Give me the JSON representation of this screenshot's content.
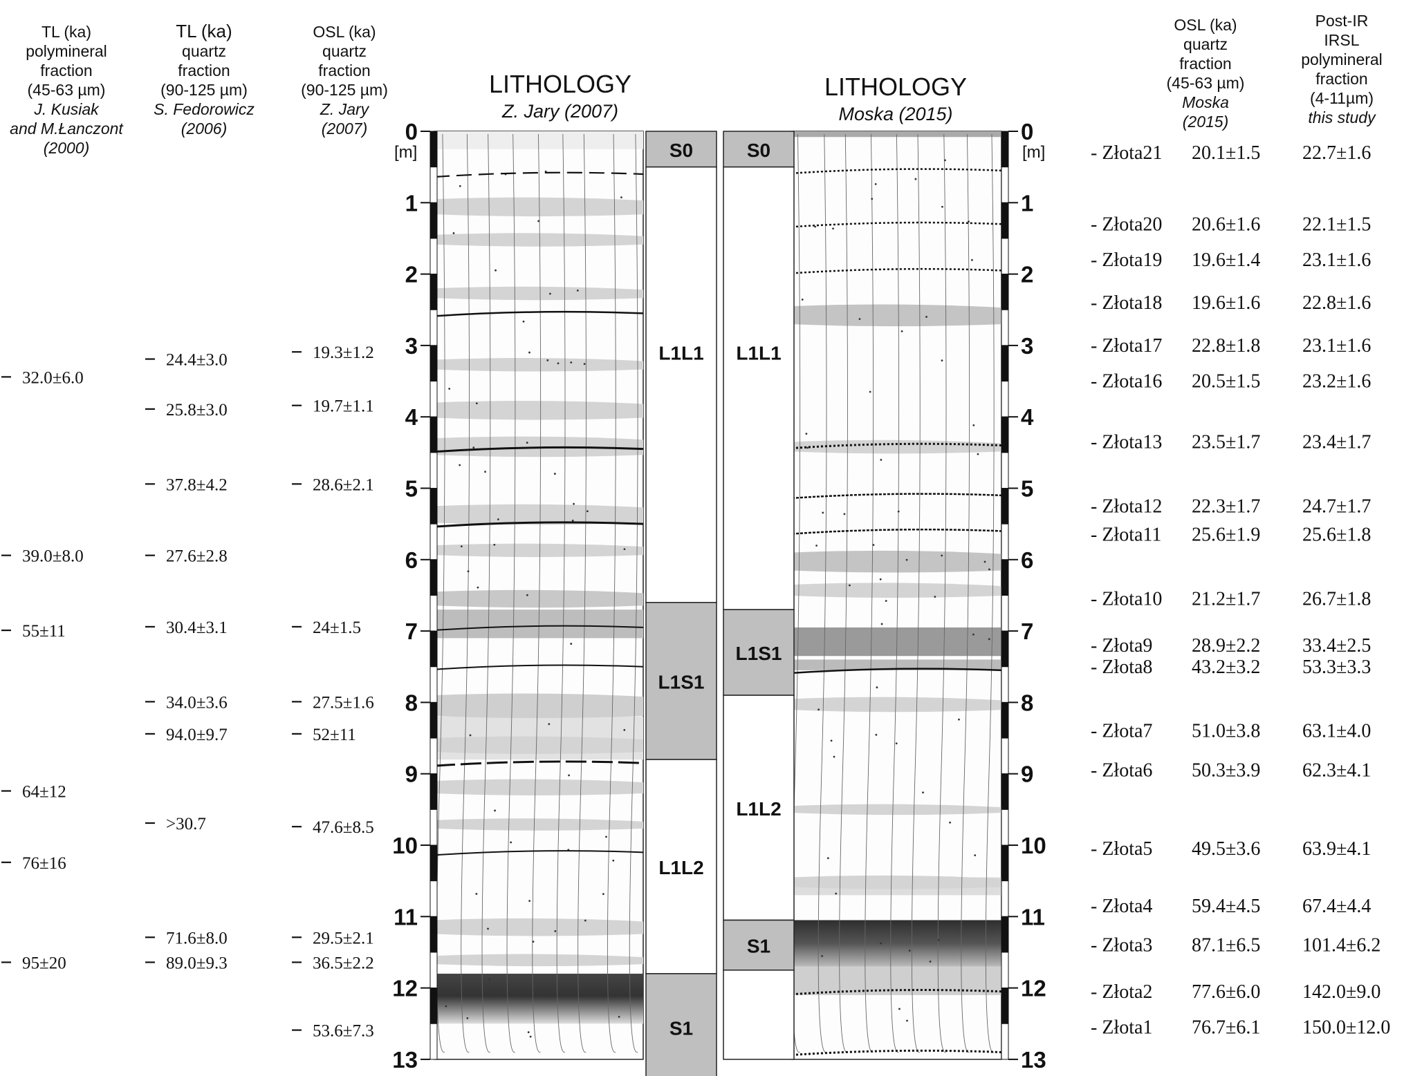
{
  "columns": {
    "tl_poly": {
      "header": [
        "TL (ka)",
        "polymineral",
        "fraction",
        "(45-63 µm)"
      ],
      "author": [
        "J. Kusiak",
        "and M.Łanczont",
        "(2000)"
      ],
      "values": [
        {
          "depth": 3.45,
          "label": "32.0±6.0"
        },
        {
          "depth": 5.95,
          "label": "39.0±8.0"
        },
        {
          "depth": 7.0,
          "label": "55±11"
        },
        {
          "depth": 9.25,
          "label": "64±12"
        },
        {
          "depth": 10.25,
          "label": "76±16"
        },
        {
          "depth": 11.65,
          "label": "95±20"
        }
      ]
    },
    "tl_quartz": {
      "header": [
        "TL (ka)",
        "quartz",
        "fraction",
        "(90-125 µm)"
      ],
      "author": [
        "S. Fedorowicz",
        "(2006)"
      ],
      "values": [
        {
          "depth": 3.2,
          "label": "24.4±3.0"
        },
        {
          "depth": 3.9,
          "label": "25.8±3.0"
        },
        {
          "depth": 4.95,
          "label": "37.8±4.2"
        },
        {
          "depth": 5.95,
          "label": "27.6±2.8"
        },
        {
          "depth": 6.95,
          "label": "30.4±3.1"
        },
        {
          "depth": 8.0,
          "label": "34.0±3.6"
        },
        {
          "depth": 8.45,
          "label": "94.0±9.7"
        },
        {
          "depth": 9.7,
          "label": ">30.7"
        },
        {
          "depth": 11.3,
          "label": "71.6±8.0"
        },
        {
          "depth": 11.65,
          "label": "89.0±9.3"
        }
      ]
    },
    "osl_jary": {
      "header": [
        "OSL (ka)",
        "quartz",
        "fraction",
        "(90-125 µm)"
      ],
      "author": [
        "Z. Jary",
        "(2007)"
      ],
      "values": [
        {
          "depth": 3.1,
          "label": "19.3±1.2"
        },
        {
          "depth": 3.85,
          "label": "19.7±1.1"
        },
        {
          "depth": 4.95,
          "label": "28.6±2.1"
        },
        {
          "depth": 6.95,
          "label": "24±1.5"
        },
        {
          "depth": 8.0,
          "label": "27.5±1.6"
        },
        {
          "depth": 8.45,
          "label": "52±11"
        },
        {
          "depth": 9.75,
          "label": "47.6±8.5"
        },
        {
          "depth": 11.3,
          "label": "29.5±2.1"
        },
        {
          "depth": 11.65,
          "label": "36.5±2.2"
        },
        {
          "depth": 12.6,
          "label": "53.6±7.3"
        }
      ]
    },
    "right": {
      "osl_header": [
        "OSL (ka)",
        "quartz",
        "fraction",
        "(45-63 µm)"
      ],
      "osl_author": [
        "Moska",
        "(2015)"
      ],
      "irsl_header": [
        "Post-IR",
        "IRSL",
        "polymineral",
        "fraction",
        "(4-11µm)"
      ],
      "irsl_author": [
        "this study"
      ],
      "samples": [
        {
          "depth": 0.3,
          "name": "- Złota21",
          "osl": "20.1±1.5",
          "irsl": "22.7±1.6"
        },
        {
          "depth": 1.3,
          "name": "- Złota20",
          "osl": "20.6±1.6",
          "irsl": "22.1±1.5"
        },
        {
          "depth": 1.8,
          "name": "- Złota19",
          "osl": "19.6±1.4",
          "irsl": "23.1±1.6"
        },
        {
          "depth": 2.4,
          "name": "- Złota18",
          "osl": "19.6±1.6",
          "irsl": "22.8±1.6"
        },
        {
          "depth": 3.0,
          "name": "- Złota17",
          "osl": "22.8±1.8",
          "irsl": "23.1±1.6"
        },
        {
          "depth": 3.5,
          "name": "- Złota16",
          "osl": "20.5±1.5",
          "irsl": "23.2±1.6"
        },
        {
          "depth": 4.35,
          "name": "- Złota13",
          "osl": "23.5±1.7",
          "irsl": "23.4±1.7"
        },
        {
          "depth": 5.25,
          "name": "- Złota12",
          "osl": "22.3±1.7",
          "irsl": "24.7±1.7"
        },
        {
          "depth": 5.65,
          "name": "- Złota11",
          "osl": "25.6±1.9",
          "irsl": "25.6±1.8"
        },
        {
          "depth": 6.55,
          "name": "- Złota10",
          "osl": "21.2±1.7",
          "irsl": "26.7±1.8"
        },
        {
          "depth": 7.2,
          "name": "- Złota9",
          "osl": "28.9±2.2",
          "irsl": "33.4±2.5"
        },
        {
          "depth": 7.5,
          "name": "- Złota8",
          "osl": "43.2±3.2",
          "irsl": "53.3±3.3"
        },
        {
          "depth": 8.4,
          "name": "- Złota7",
          "osl": "51.0±3.8",
          "irsl": "63.1±4.0"
        },
        {
          "depth": 8.95,
          "name": "- Złota6",
          "osl": "50.3±3.9",
          "irsl": "62.3±4.1"
        },
        {
          "depth": 10.05,
          "name": "- Złota5",
          "osl": "49.5±3.6",
          "irsl": "63.9±4.1"
        },
        {
          "depth": 10.85,
          "name": "- Złota4",
          "osl": "59.4±4.5",
          "irsl": "67.4±4.4"
        },
        {
          "depth": 11.4,
          "name": "- Złota3",
          "osl": "87.1±6.5",
          "irsl": "101.4±6.2"
        },
        {
          "depth": 12.05,
          "name": "- Złota2",
          "osl": "77.6±6.0",
          "irsl": "142.0±9.0"
        },
        {
          "depth": 12.55,
          "name": "- Złota1",
          "osl": "76.7±6.1",
          "irsl": "150.0±12.0"
        }
      ]
    }
  },
  "lithology_left": {
    "title": "LITHOLOGY",
    "subtitle": "Z. Jary (2007)",
    "units": [
      {
        "label": "S0",
        "from": 0,
        "to": 0.5,
        "shaded": true
      },
      {
        "label": "L1L1",
        "from": 0.5,
        "to": 6.6,
        "shaded": false
      },
      {
        "label": "L1S1",
        "from": 6.6,
        "to": 8.8,
        "shaded": true
      },
      {
        "label": "L1L2",
        "from": 8.8,
        "to": 11.8,
        "shaded": false
      },
      {
        "label": "S1",
        "from": 11.8,
        "to": 13.3,
        "shaded": true
      }
    ]
  },
  "lithology_right": {
    "title": "LITHOLOGY",
    "subtitle": "Moska (2015)",
    "units": [
      {
        "label": "S0",
        "from": 0,
        "to": 0.5,
        "shaded": true
      },
      {
        "label": "L1L1",
        "from": 0.5,
        "to": 6.7,
        "shaded": false
      },
      {
        "label": "L1S1",
        "from": 6.7,
        "to": 7.9,
        "shaded": true
      },
      {
        "label": "L1L2",
        "from": 7.9,
        "to": 11.05,
        "shaded": false
      },
      {
        "label": "S1",
        "from": 11.05,
        "to": 11.75,
        "shaded": true
      },
      {
        "label": "",
        "from": 11.75,
        "to": 13.0,
        "shaded": false
      }
    ]
  },
  "depth_scale": {
    "unit": "[m]",
    "ticks": [
      "0",
      "1",
      "2",
      "3",
      "4",
      "5",
      "6",
      "7",
      "8",
      "9",
      "10",
      "11",
      "12",
      "13"
    ]
  }
}
